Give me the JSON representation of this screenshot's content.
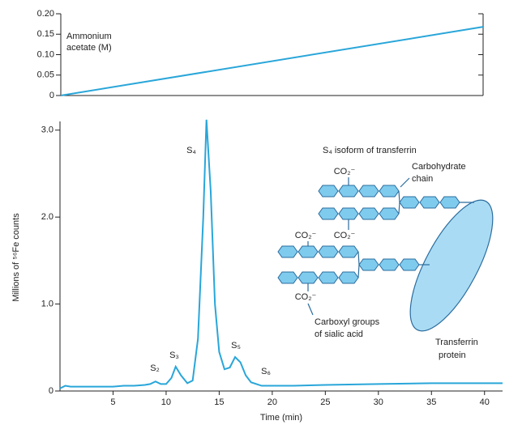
{
  "chart_data": [
    {
      "type": "line",
      "ylabel": [
        "Ammonium",
        "acetate (M)"
      ],
      "x": [
        0,
        40
      ],
      "values": [
        0,
        0.168
      ],
      "color": "#29a6d9",
      "xlim": [
        0,
        40
      ],
      "ylim": [
        0,
        0.2
      ],
      "yticks": [
        0,
        0.05,
        {
          "value": 0.1,
          "label": "0.10"
        },
        0.15,
        {
          "value": 0.2,
          "label": "0.20"
        }
      ]
    },
    {
      "type": "line",
      "xlabel": "Time (min)",
      "ylabel": "Millions of ⁵⁶Fe counts",
      "color": "#29a6d9",
      "x": [
        0,
        0.5,
        1,
        2,
        3,
        4,
        5,
        6,
        7,
        8,
        8.5,
        9,
        9.5,
        10,
        10.5,
        10.9,
        11.4,
        12,
        12.5,
        13,
        13.5,
        13.8,
        14.2,
        14.6,
        15,
        15.5,
        16,
        16.5,
        17,
        17.5,
        18,
        19,
        20,
        22,
        25,
        30,
        35,
        40,
        41.7
      ],
      "values": [
        0.03,
        0.06,
        0.05,
        0.05,
        0.05,
        0.05,
        0.05,
        0.06,
        0.06,
        0.07,
        0.08,
        0.11,
        0.08,
        0.08,
        0.15,
        0.28,
        0.18,
        0.09,
        0.12,
        0.6,
        2.0,
        3.12,
        2.3,
        1.0,
        0.45,
        0.25,
        0.27,
        0.39,
        0.33,
        0.18,
        0.1,
        0.06,
        0.06,
        0.06,
        0.07,
        0.08,
        0.09,
        0.09,
        0.09
      ],
      "xlim": [
        0,
        41.7
      ],
      "ylim": [
        0,
        3.1
      ],
      "xticks": [
        5,
        10,
        15,
        20,
        25,
        30,
        35,
        40
      ],
      "yticks": [
        0,
        {
          "value": 1,
          "label": "1.0"
        },
        {
          "value": 2,
          "label": "2.0"
        },
        {
          "value": 3,
          "label": "3.0"
        }
      ],
      "peak_labels": [
        "S₂",
        "S₃",
        "S₄",
        "S₅",
        "S₆"
      ],
      "diagram": {
        "title": "S₄ isoform of transferrin",
        "carbohydrate_label": [
          "Carbohydrate",
          "chain"
        ],
        "carboxyl_labels": [
          "CO₂⁻",
          "CO₂⁻",
          "CO₂⁻",
          "CO₂⁻"
        ],
        "sialic_label": [
          "Carboxyl groups",
          "of sialic acid"
        ],
        "protein_label": [
          "Transferrin",
          "protein"
        ]
      }
    }
  ]
}
